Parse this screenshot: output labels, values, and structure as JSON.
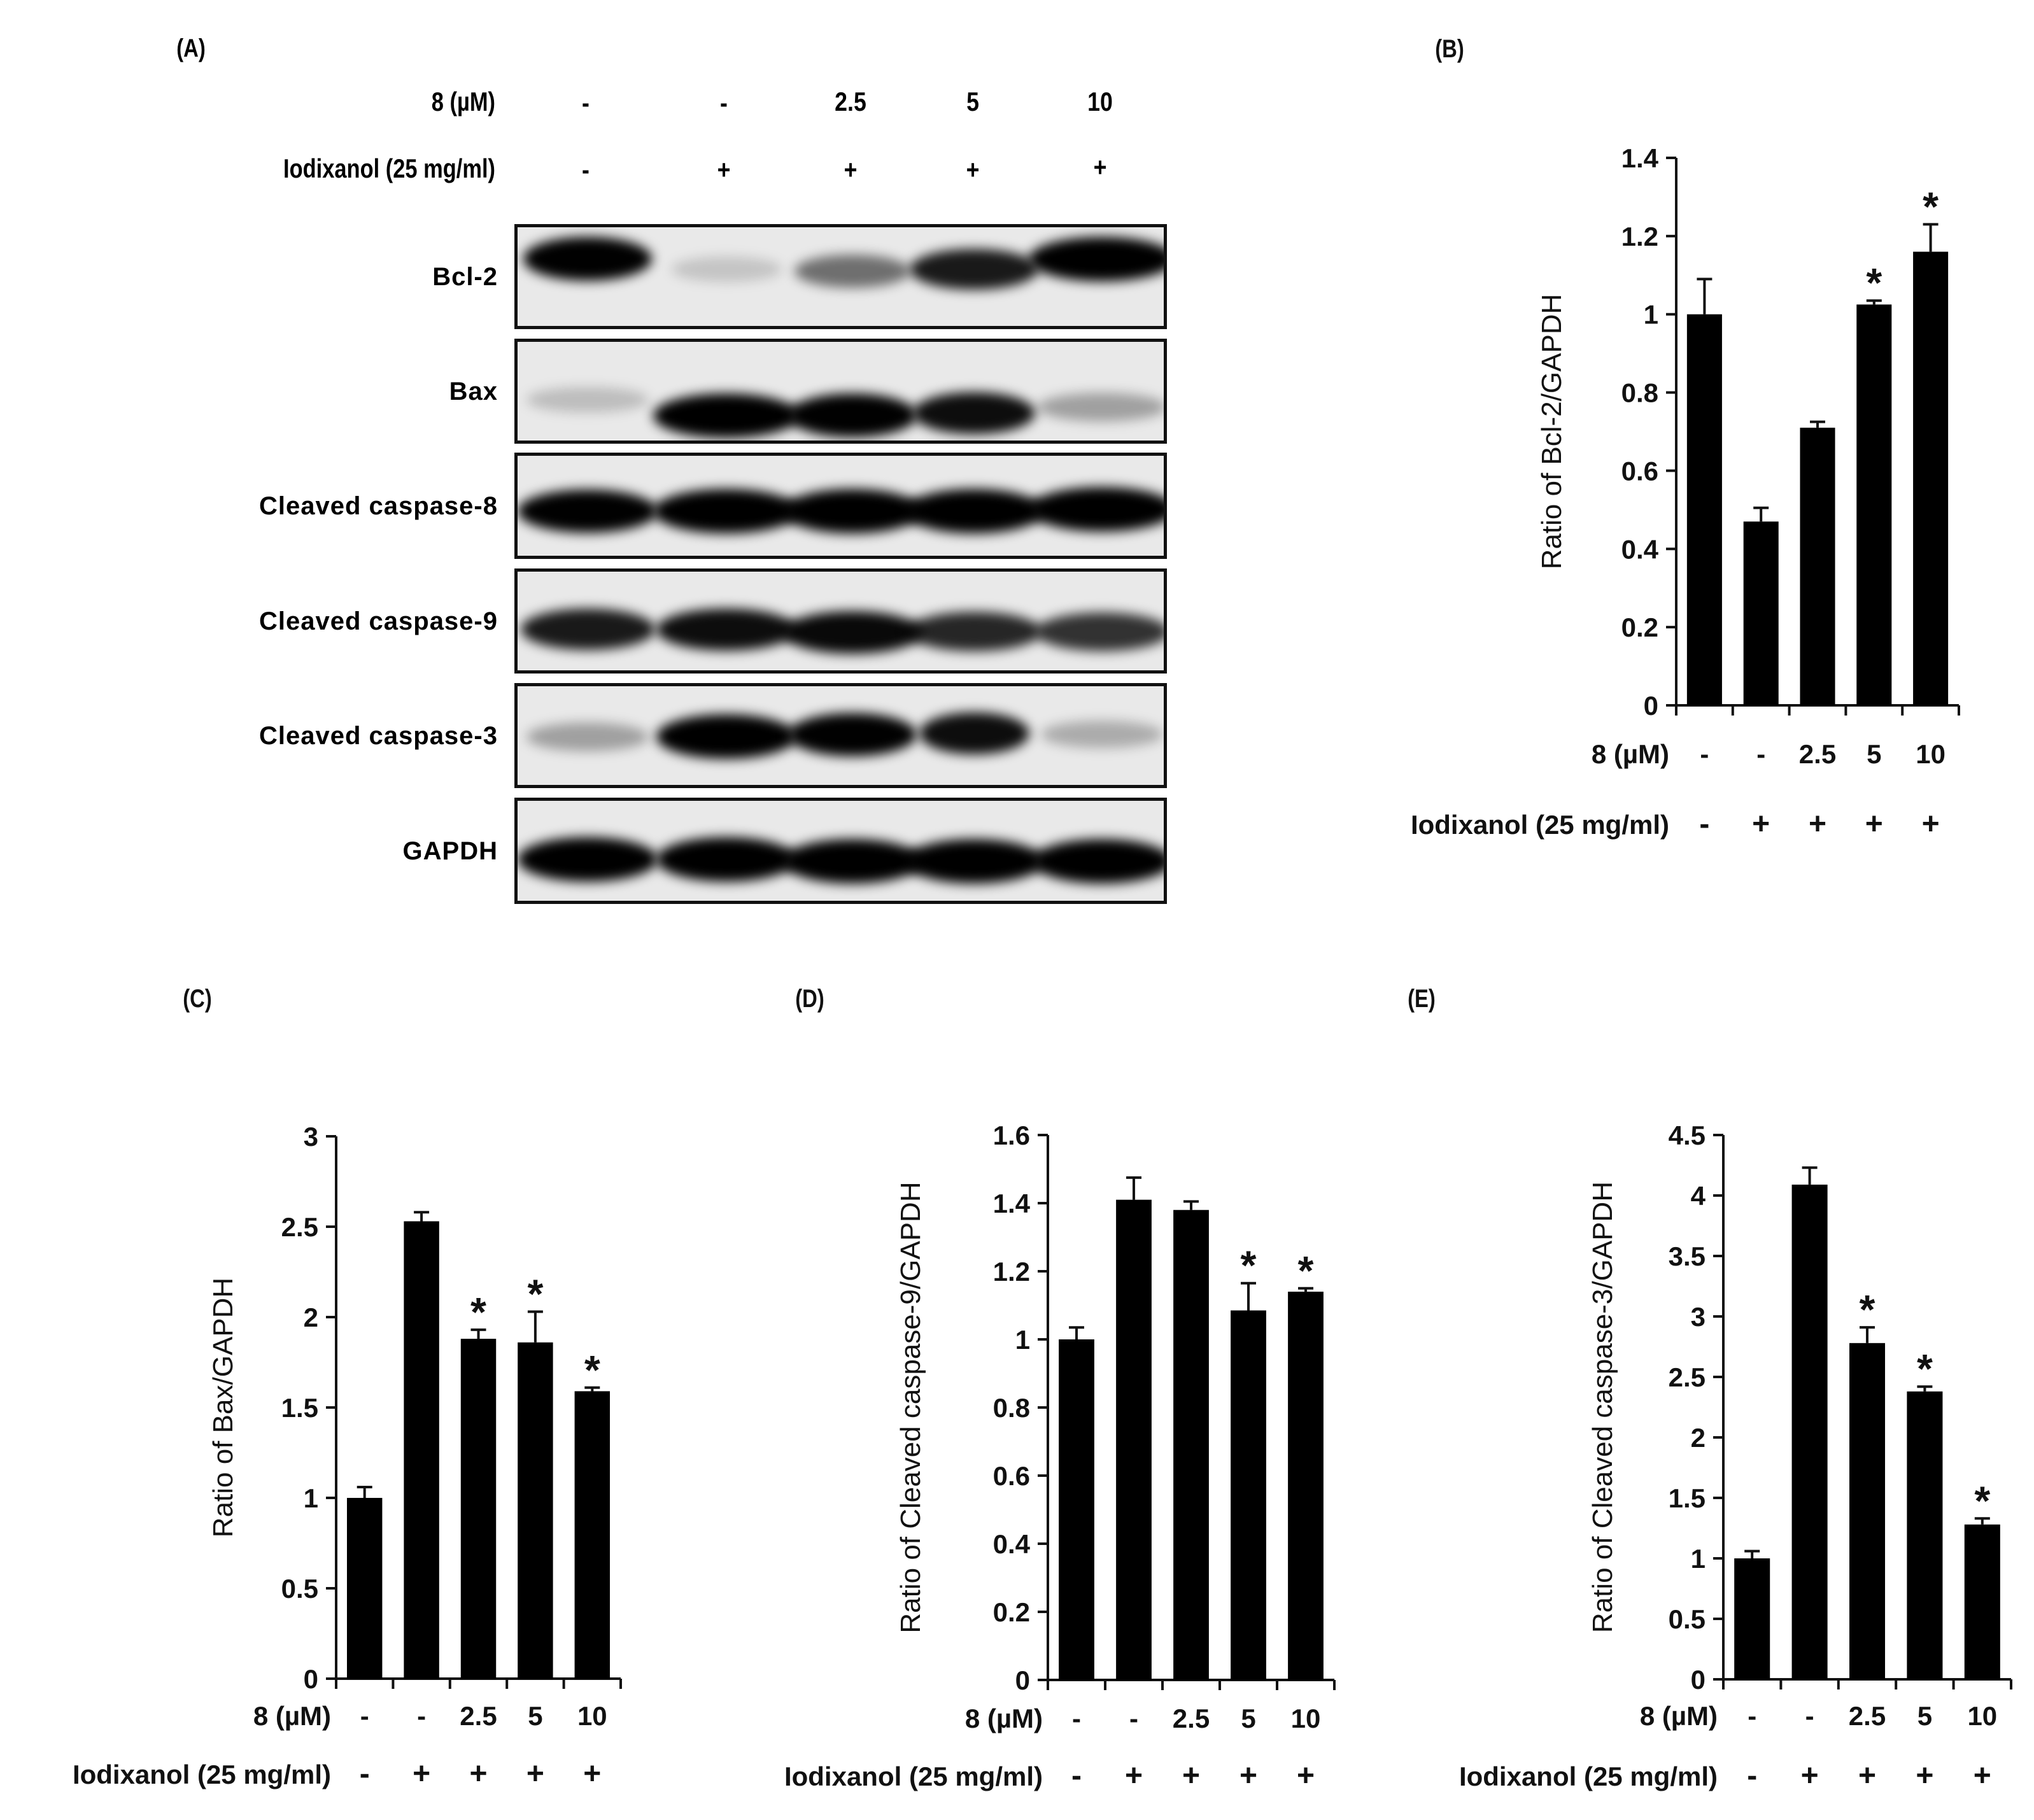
{
  "conditions": {
    "compound_label": "8 (µM)",
    "iodixanol_label": "Iodixanol (25 mg/ml)",
    "compound_values": [
      "-",
      "-",
      "2.5",
      "5",
      "10"
    ],
    "iodixanol_values": [
      "-",
      "+",
      "+",
      "+",
      "+"
    ]
  },
  "panel_a": {
    "label": "(A)",
    "blots": [
      {
        "name": "Bcl-2",
        "bands": [
          [
            0.95,
            0.3,
            0.85
          ],
          [
            0.15,
            0.4,
            0.7
          ],
          [
            0.5,
            0.42,
            0.75
          ],
          [
            0.85,
            0.4,
            0.85
          ],
          [
            1.0,
            0.3,
            1.0
          ]
        ]
      },
      {
        "name": "Bax",
        "bands": [
          [
            0.18,
            0.55,
            0.8
          ],
          [
            1.0,
            0.7,
            1.0
          ],
          [
            0.95,
            0.7,
            0.85
          ],
          [
            0.9,
            0.68,
            0.8
          ],
          [
            0.3,
            0.62,
            0.85
          ]
        ]
      },
      {
        "name": "Cleaved caspase-8",
        "bands": [
          [
            0.95,
            0.52,
            0.95
          ],
          [
            1.0,
            0.52,
            1.0
          ],
          [
            1.0,
            0.52,
            0.95
          ],
          [
            1.0,
            0.52,
            0.95
          ],
          [
            1.0,
            0.5,
            1.0
          ]
        ]
      },
      {
        "name": "Cleaved caspase-9",
        "bands": [
          [
            0.85,
            0.55,
            0.9
          ],
          [
            0.9,
            0.55,
            0.95
          ],
          [
            0.92,
            0.58,
            0.95
          ],
          [
            0.8,
            0.57,
            0.9
          ],
          [
            0.75,
            0.57,
            0.9
          ]
        ]
      },
      {
        "name": "Cleaved caspase-3",
        "bands": [
          [
            0.3,
            0.48,
            0.8
          ],
          [
            1.0,
            0.48,
            0.95
          ],
          [
            0.95,
            0.46,
            0.85
          ],
          [
            0.9,
            0.45,
            0.7
          ],
          [
            0.25,
            0.46,
            0.8
          ]
        ]
      },
      {
        "name": "GAPDH",
        "bands": [
          [
            1.0,
            0.55,
            0.95
          ],
          [
            1.0,
            0.55,
            0.95
          ],
          [
            1.0,
            0.57,
            0.95
          ],
          [
            1.0,
            0.57,
            0.95
          ],
          [
            1.0,
            0.57,
            0.95
          ]
        ]
      }
    ]
  },
  "chart_data": [
    {
      "panel": "(B)",
      "type": "bar",
      "title": "",
      "ylabel": "Ratio of Bcl-2/GAPDH",
      "xlabel": "",
      "categories": [
        "-/-",
        "-/+",
        "2.5/+",
        "5/+",
        "10/+"
      ],
      "x_rows": [
        {
          "label": "8 (µM)",
          "values": [
            "-",
            "-",
            "2.5",
            "5",
            "10"
          ]
        },
        {
          "label": "Iodixanol (25 mg/ml)",
          "values": [
            "-",
            "+",
            "+",
            "+",
            "+"
          ]
        }
      ],
      "values": [
        1.0,
        0.47,
        0.71,
        1.025,
        1.16
      ],
      "error_upper": [
        1.09,
        0.505,
        0.725,
        1.035,
        1.23
      ],
      "significance": [
        false,
        false,
        false,
        true,
        true
      ],
      "ylim": [
        0,
        1.4
      ],
      "yticks": [
        0,
        0.2,
        0.4,
        0.6,
        0.8,
        1,
        1.2,
        1.4
      ],
      "ytick_labels": [
        "0",
        "0.2",
        "0.4",
        "0.6",
        "0.8",
        "1",
        "1.2",
        "1.4"
      ],
      "grid": false,
      "legend": null
    },
    {
      "panel": "(C)",
      "type": "bar",
      "title": "",
      "ylabel": "Ratio of Bax/GAPDH",
      "xlabel": "",
      "categories": [
        "-/-",
        "-/+",
        "2.5/+",
        "5/+",
        "10/+"
      ],
      "x_rows": [
        {
          "label": "8 (µM)",
          "values": [
            "-",
            "-",
            "2.5",
            "5",
            "10"
          ]
        },
        {
          "label": "Iodixanol (25 mg/ml)",
          "values": [
            "-",
            "+",
            "+",
            "+",
            "+"
          ]
        }
      ],
      "values": [
        1.0,
        2.53,
        1.88,
        1.86,
        1.59
      ],
      "error_upper": [
        1.06,
        2.58,
        1.93,
        2.03,
        1.61
      ],
      "significance": [
        false,
        false,
        true,
        true,
        true
      ],
      "ylim": [
        0,
        3
      ],
      "yticks": [
        0,
        0.5,
        1,
        1.5,
        2,
        2.5,
        3
      ],
      "ytick_labels": [
        "0",
        "0.5",
        "1",
        "1.5",
        "2",
        "2.5",
        "3"
      ],
      "grid": false,
      "legend": null
    },
    {
      "panel": "(D)",
      "type": "bar",
      "title": "",
      "ylabel": "Ratio of Cleaved caspase-9/GAPDH",
      "xlabel": "",
      "categories": [
        "-/-",
        "-/+",
        "2.5/+",
        "5/+",
        "10/+"
      ],
      "x_rows": [
        {
          "label": "8 (µM)",
          "values": [
            "-",
            "-",
            "2.5",
            "5",
            "10"
          ]
        },
        {
          "label": "Iodixanol (25 mg/ml)",
          "values": [
            "-",
            "+",
            "+",
            "+",
            "+"
          ]
        }
      ],
      "values": [
        1.0,
        1.41,
        1.38,
        1.085,
        1.14
      ],
      "error_upper": [
        1.035,
        1.475,
        1.405,
        1.165,
        1.15
      ],
      "significance": [
        false,
        false,
        false,
        true,
        true
      ],
      "ylim": [
        0,
        1.6
      ],
      "yticks": [
        0,
        0.2,
        0.4,
        0.6,
        0.8,
        1,
        1.2,
        1.4,
        1.6
      ],
      "ytick_labels": [
        "0",
        "0.2",
        "0.4",
        "0.6",
        "0.8",
        "1",
        "1.2",
        "1.4",
        "1.6"
      ],
      "grid": false,
      "legend": null
    },
    {
      "panel": "(E)",
      "type": "bar",
      "title": "",
      "ylabel": "Ratio of Cleaved caspase-3/GAPDH",
      "xlabel": "",
      "categories": [
        "-/-",
        "-/+",
        "2.5/+",
        "5/+",
        "10/+"
      ],
      "x_rows": [
        {
          "label": "8 (µM)",
          "values": [
            "-",
            "-",
            "2.5",
            "5",
            "10"
          ]
        },
        {
          "label": "Iodixanol (25 mg/ml)",
          "values": [
            "-",
            "+",
            "+",
            "+",
            "+"
          ]
        }
      ],
      "values": [
        1.0,
        4.09,
        2.78,
        2.38,
        1.28
      ],
      "error_upper": [
        1.06,
        4.23,
        2.91,
        2.42,
        1.33
      ],
      "significance": [
        false,
        false,
        true,
        true,
        true
      ],
      "ylim": [
        0,
        4.5
      ],
      "yticks": [
        0,
        0.5,
        1,
        1.5,
        2,
        2.5,
        3,
        3.5,
        4,
        4.5
      ],
      "ytick_labels": [
        "0",
        "0.5",
        "1",
        "1.5",
        "2",
        "2.5",
        "3",
        "3.5",
        "4",
        "4.5"
      ],
      "grid": false,
      "legend": null
    }
  ],
  "style": {
    "bar_color": "#000000",
    "axis_color": "#111111",
    "blot_background": "#e9e9e9",
    "significance_marker": "*"
  }
}
